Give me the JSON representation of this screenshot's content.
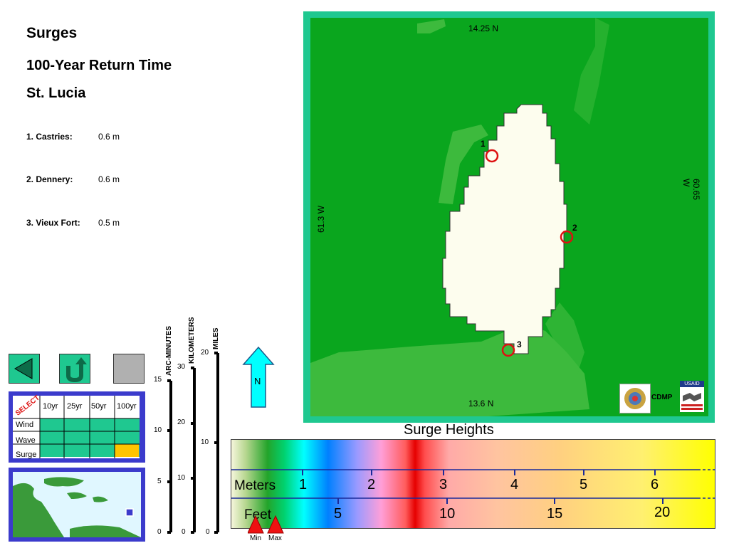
{
  "header": {
    "title": "Surges",
    "subtitle": "100-Year Return Time",
    "place": "St. Lucia"
  },
  "locations": [
    {
      "label": "1. Castries:",
      "value": "0.6 m"
    },
    {
      "label": "2. Dennery:",
      "value": "0.6 m"
    },
    {
      "label": "3. Vieux Fort:",
      "value": "0.5 m"
    }
  ],
  "map": {
    "lat_top": "14.25 N",
    "lat_bottom": "13.6 N",
    "lon_left": "61.3 W",
    "lon_right": "60.65 W",
    "markers": [
      "1",
      "2",
      "3"
    ],
    "logo_text": "CDMP",
    "usaid_text": "USAID",
    "colors": {
      "sea": "#0aa61e",
      "sea_light": "#3dba3d",
      "land": "#fdfdee",
      "frame": "#1fc890",
      "marker": "#dd1111"
    }
  },
  "controls": {
    "icons": [
      "back-arrow-icon",
      "u-turn-arrow-icon",
      "blank-gray-button"
    ]
  },
  "select_table": {
    "badge": "SELECT",
    "columns": [
      "10yr",
      "25yr",
      "50yr",
      "100yr"
    ],
    "rows": [
      "Wind",
      "Wave",
      "Surge"
    ],
    "selected": {
      "row": "Surge",
      "column": "100yr"
    },
    "colors": {
      "cell": "#1fc890",
      "selected": "#ffc400",
      "frame": "#3b3bcc"
    }
  },
  "scales": {
    "arc_minutes": {
      "title": "ARC-MINUTES",
      "ticks": [
        "15",
        "10",
        "5",
        "0"
      ]
    },
    "kilometers": {
      "title": "KILOMETERS",
      "ticks": [
        "30",
        "20",
        "10",
        "0"
      ]
    },
    "miles": {
      "title": "MILES",
      "ticks": [
        "20",
        "10",
        "0"
      ]
    }
  },
  "north": {
    "label": "N"
  },
  "legend": {
    "title": "Surge Heights",
    "meters_label": "Meters",
    "feet_label": "Feet",
    "meters": [
      "1",
      "2",
      "3",
      "4",
      "5",
      "6"
    ],
    "feet": [
      "5",
      "10",
      "15",
      "20"
    ],
    "min_label": "Min",
    "max_label": "Max"
  }
}
